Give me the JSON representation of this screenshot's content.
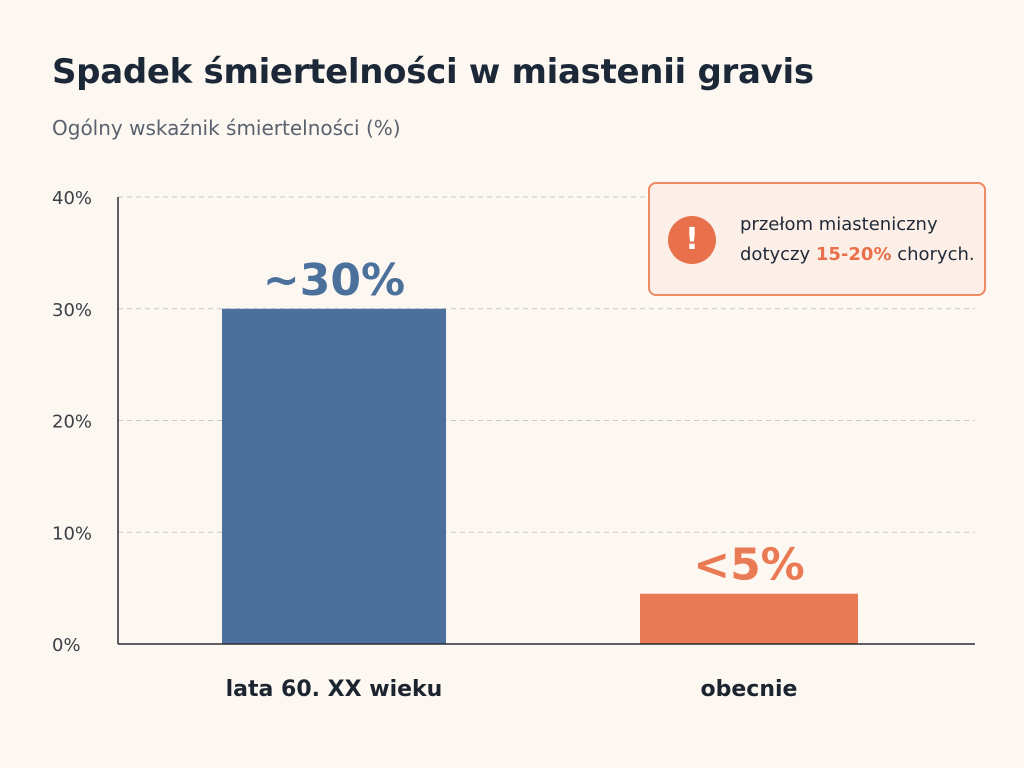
{
  "header": {
    "title": "Spadek śmiertelności w miastenii gravis",
    "subtitle": "Ogólny wskaźnik śmiertelności (%)"
  },
  "callout": {
    "icon": "exclamation-icon",
    "line1": "przełom miasteniczny",
    "line2_pre": "dotyczy ",
    "line2_highlight": "15-20%",
    "line2_post": " chorych."
  },
  "colors": {
    "bar_past": "#4a709b",
    "bar_now": "#ea7a53",
    "accent": "#e8704a",
    "grid": "#c8c8c2",
    "axis": "#2b2b33"
  },
  "chart_data": {
    "type": "bar",
    "categories": [
      "lata 60. XX wieku",
      "obecnie"
    ],
    "values": [
      30,
      4.5
    ],
    "data_labels": [
      "~30%",
      "<5%"
    ],
    "ylim": [
      0,
      40
    ],
    "yticks": [
      0,
      10,
      20,
      30,
      40
    ],
    "ytick_labels": [
      "0%",
      "10%",
      "20%",
      "30%",
      "40%"
    ],
    "grid": true,
    "title": "",
    "xlabel": "",
    "ylabel": ""
  }
}
